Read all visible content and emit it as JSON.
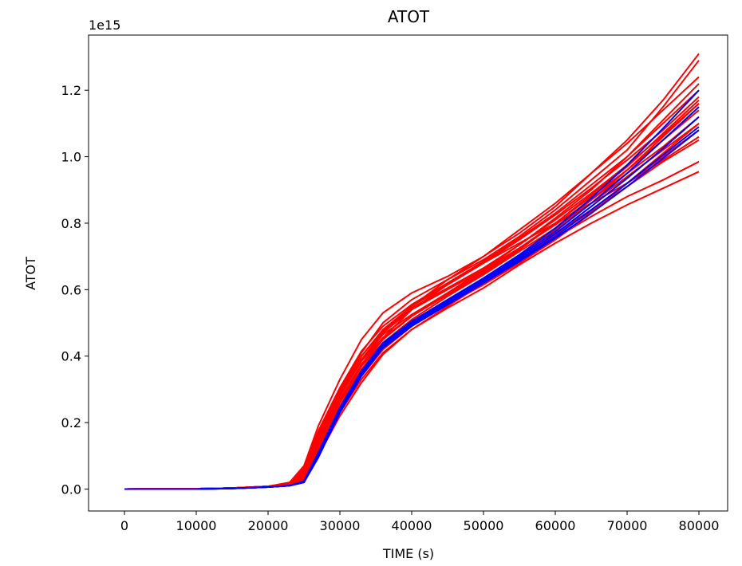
{
  "chart_data": {
    "type": "line",
    "title": "ATOT",
    "xlabel": "TIME (s)",
    "ylabel": "ATOT",
    "y_offset_label": "1e15",
    "xlim": [
      -5000,
      84000
    ],
    "ylim": [
      -0.066,
      1.366
    ],
    "y_scale_factor": 1000000000000000.0,
    "x_ticks": [
      0,
      10000,
      20000,
      30000,
      40000,
      50000,
      60000,
      70000,
      80000
    ],
    "x_tick_labels": [
      "0",
      "10000",
      "20000",
      "30000",
      "40000",
      "50000",
      "60000",
      "70000",
      "80000"
    ],
    "y_ticks": [
      0.0,
      0.2,
      0.4,
      0.6,
      0.8,
      1.0,
      1.2
    ],
    "y_tick_labels": [
      "0.0",
      "0.2",
      "0.4",
      "0.6",
      "0.8",
      "1.0",
      "1.2"
    ],
    "grid": false,
    "legend": "none",
    "colors": {
      "ensemble": "#ff0000",
      "reference": "#0000ff"
    },
    "x": [
      0,
      10000,
      15000,
      20000,
      23000,
      25000,
      27000,
      30000,
      33000,
      36000,
      40000,
      45000,
      50000,
      55000,
      60000,
      65000,
      70000,
      75000,
      80000
    ],
    "series": [
      {
        "color": "#ff0000",
        "values": [
          0,
          0.001,
          0.003,
          0.008,
          0.015,
          0.045,
          0.14,
          0.27,
          0.375,
          0.455,
          0.54,
          0.615,
          0.68,
          0.74,
          0.8,
          0.86,
          0.92,
          0.99,
          1.06
        ]
      },
      {
        "color": "#ff0000",
        "values": [
          0,
          0.001,
          0.003,
          0.008,
          0.018,
          0.06,
          0.17,
          0.3,
          0.41,
          0.5,
          0.57,
          0.63,
          0.69,
          0.76,
          0.84,
          0.93,
          1.02,
          1.15,
          1.29
        ]
      },
      {
        "color": "#ff0000",
        "values": [
          0,
          0.001,
          0.003,
          0.008,
          0.02,
          0.07,
          0.19,
          0.33,
          0.45,
          0.53,
          0.59,
          0.64,
          0.7,
          0.77,
          0.85,
          0.95,
          1.05,
          1.17,
          1.31
        ]
      },
      {
        "color": "#ff0000",
        "values": [
          0,
          0.001,
          0.003,
          0.008,
          0.016,
          0.05,
          0.15,
          0.28,
          0.385,
          0.465,
          0.525,
          0.59,
          0.655,
          0.725,
          0.8,
          0.88,
          0.96,
          1.06,
          1.16
        ]
      },
      {
        "color": "#ff0000",
        "values": [
          0,
          0.001,
          0.003,
          0.007,
          0.012,
          0.03,
          0.11,
          0.23,
          0.33,
          0.41,
          0.48,
          0.55,
          0.62,
          0.69,
          0.77,
          0.84,
          0.92,
          1.0,
          1.08
        ]
      },
      {
        "color": "#ff0000",
        "values": [
          0,
          0.001,
          0.003,
          0.007,
          0.012,
          0.03,
          0.11,
          0.24,
          0.34,
          0.42,
          0.49,
          0.56,
          0.625,
          0.69,
          0.755,
          0.82,
          0.88,
          0.93,
          0.985
        ]
      },
      {
        "color": "#ff0000",
        "values": [
          0,
          0.001,
          0.003,
          0.007,
          0.012,
          0.03,
          0.1,
          0.22,
          0.32,
          0.405,
          0.48,
          0.545,
          0.605,
          0.675,
          0.74,
          0.8,
          0.855,
          0.905,
          0.955
        ]
      },
      {
        "color": "#ff0000",
        "values": [
          0,
          0.001,
          0.003,
          0.008,
          0.015,
          0.045,
          0.15,
          0.28,
          0.39,
          0.47,
          0.55,
          0.63,
          0.7,
          0.78,
          0.86,
          0.95,
          1.04,
          1.14,
          1.24
        ]
      },
      {
        "color": "#ff0000",
        "values": [
          0,
          0.001,
          0.003,
          0.008,
          0.014,
          0.04,
          0.13,
          0.26,
          0.36,
          0.44,
          0.51,
          0.58,
          0.645,
          0.715,
          0.785,
          0.86,
          0.94,
          1.02,
          1.1
        ]
      },
      {
        "color": "#ff0000",
        "values": [
          0,
          0.001,
          0.003,
          0.008,
          0.016,
          0.055,
          0.16,
          0.29,
          0.4,
          0.48,
          0.55,
          0.615,
          0.68,
          0.75,
          0.825,
          0.905,
          0.99,
          1.08,
          1.18
        ]
      },
      {
        "color": "#ff0000",
        "values": [
          0,
          0.001,
          0.003,
          0.008,
          0.015,
          0.05,
          0.15,
          0.27,
          0.37,
          0.44,
          0.5,
          0.56,
          0.625,
          0.7,
          0.78,
          0.87,
          0.96,
          1.05,
          1.14
        ]
      },
      {
        "color": "#ff0000",
        "values": [
          0,
          0.001,
          0.003,
          0.008,
          0.017,
          0.06,
          0.165,
          0.295,
          0.4,
          0.475,
          0.545,
          0.605,
          0.665,
          0.735,
          0.815,
          0.9,
          1.0,
          1.11,
          1.22
        ]
      },
      {
        "color": "#ff0000",
        "values": [
          0,
          0.001,
          0.003,
          0.007,
          0.013,
          0.035,
          0.12,
          0.25,
          0.355,
          0.435,
          0.5,
          0.565,
          0.63,
          0.695,
          0.765,
          0.835,
          0.91,
          0.985,
          1.05
        ]
      },
      {
        "color": "#ff0000",
        "values": [
          0,
          0.001,
          0.003,
          0.008,
          0.015,
          0.05,
          0.155,
          0.28,
          0.385,
          0.455,
          0.52,
          0.59,
          0.66,
          0.735,
          0.81,
          0.89,
          0.975,
          1.065,
          1.16
        ]
      },
      {
        "color": "#ff0000",
        "values": [
          0,
          0.001,
          0.003,
          0.008,
          0.016,
          0.052,
          0.155,
          0.285,
          0.39,
          0.47,
          0.54,
          0.6,
          0.66,
          0.725,
          0.795,
          0.87,
          0.95,
          1.03,
          1.12
        ]
      },
      {
        "color": "#ff0000",
        "values": [
          0,
          0.001,
          0.003,
          0.008,
          0.014,
          0.042,
          0.14,
          0.265,
          0.37,
          0.45,
          0.52,
          0.585,
          0.65,
          0.72,
          0.8,
          0.885,
          0.97,
          1.07,
          1.17
        ]
      },
      {
        "color": "#ff0000",
        "values": [
          0,
          0.001,
          0.003,
          0.008,
          0.018,
          0.065,
          0.175,
          0.305,
          0.415,
          0.49,
          0.555,
          0.62,
          0.685,
          0.755,
          0.83,
          0.915,
          1.0,
          1.1,
          1.2
        ]
      },
      {
        "color": "#ff0000",
        "values": [
          0,
          0.001,
          0.003,
          0.007,
          0.012,
          0.03,
          0.105,
          0.235,
          0.34,
          0.42,
          0.49,
          0.555,
          0.615,
          0.68,
          0.75,
          0.83,
          0.92,
          1.01,
          1.1
        ]
      },
      {
        "color": "#0000ff",
        "values": [
          0,
          0.0,
          0.002,
          0.006,
          0.01,
          0.02,
          0.1,
          0.235,
          0.345,
          0.43,
          0.495,
          0.56,
          0.625,
          0.69,
          0.76,
          0.84,
          0.92,
          1.005,
          1.09
        ]
      },
      {
        "color": "#0000ff",
        "values": [
          0,
          0.0,
          0.002,
          0.006,
          0.01,
          0.022,
          0.105,
          0.24,
          0.35,
          0.435,
          0.5,
          0.565,
          0.63,
          0.7,
          0.775,
          0.86,
          0.95,
          1.05,
          1.15
        ]
      },
      {
        "color": "#0000ff",
        "values": [
          0,
          0.0,
          0.002,
          0.006,
          0.01,
          0.02,
          0.095,
          0.23,
          0.34,
          0.425,
          0.49,
          0.555,
          0.62,
          0.685,
          0.755,
          0.83,
          0.91,
          0.995,
          1.08
        ]
      },
      {
        "color": "#0000ff",
        "values": [
          0,
          0.0,
          0.002,
          0.006,
          0.01,
          0.024,
          0.11,
          0.245,
          0.355,
          0.44,
          0.505,
          0.57,
          0.635,
          0.705,
          0.785,
          0.875,
          0.975,
          1.085,
          1.2
        ]
      },
      {
        "color": "#0000ff",
        "values": [
          0,
          0.0,
          0.002,
          0.006,
          0.01,
          0.021,
          0.1,
          0.235,
          0.345,
          0.43,
          0.497,
          0.562,
          0.627,
          0.695,
          0.768,
          0.85,
          0.935,
          1.025,
          1.12
        ]
      }
    ]
  }
}
